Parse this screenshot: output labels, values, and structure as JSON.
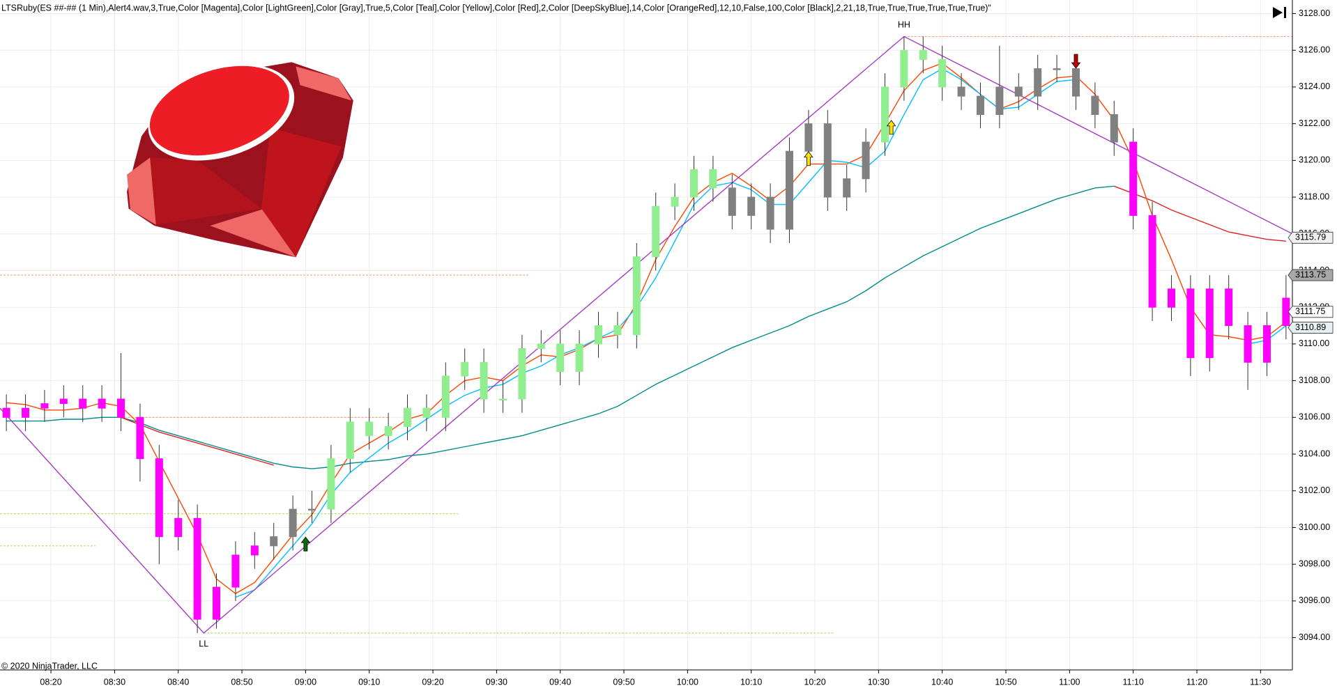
{
  "chart_data": {
    "type": "candlestick",
    "title": "LTSRuby(ES  ##-## (1 Min),Alert4.wav,3,True,Color [Magenta],Color [LightGreen],Color [Gray],True,5,Color [Teal],Color [Yellow],Color [Red],2,Color [DeepSkyBlue],14,Color [OrangeRed],12,10,False,100,Color [Black],2,21,18,True,True,True,True,True,True)\"",
    "footer": "© 2020 NinjaTrader, LLC",
    "x": [
      "08:13",
      "08:16",
      "08:19",
      "08:22",
      "08:25",
      "08:28",
      "08:31",
      "08:34",
      "08:37",
      "08:40",
      "08:43",
      "08:46",
      "08:49",
      "08:52",
      "08:55",
      "08:58",
      "09:01",
      "09:04",
      "09:07",
      "09:10",
      "09:13",
      "09:16",
      "09:19",
      "09:22",
      "09:25",
      "09:28",
      "09:31",
      "09:34",
      "09:37",
      "09:40",
      "09:43",
      "09:46",
      "09:49",
      "09:52",
      "09:55",
      "09:58",
      "10:01",
      "10:04",
      "10:07",
      "10:10",
      "10:13",
      "10:16",
      "10:19",
      "10:22",
      "10:25",
      "10:28",
      "10:31",
      "10:34",
      "10:37",
      "10:40",
      "10:43",
      "10:46",
      "10:49",
      "10:52",
      "10:55",
      "10:58",
      "11:01",
      "11:04",
      "11:07",
      "11:10",
      "11:13",
      "11:16",
      "11:19",
      "11:22",
      "11:25",
      "11:28",
      "11:31",
      "11:34"
    ],
    "open": [
      3106.5,
      3106,
      3106.5,
      3106.75,
      3107,
      3106.5,
      3107,
      3106,
      3103.75,
      3099.5,
      3100.5,
      3095,
      3096.75,
      3098.5,
      3099,
      3099.5,
      3101,
      3101,
      3103.75,
      3105.75,
      3105,
      3105.5,
      3106.5,
      3106,
      3108.25,
      3109,
      3107,
      3107,
      3109.75,
      3110,
      3108.5,
      3110,
      3111,
      3110.5,
      3114.75,
      3117.5,
      3118,
      3119.5,
      3118.5,
      3117,
      3118,
      3116.25,
      3120.5,
      3122,
      3118,
      3119,
      3121,
      3124,
      3126,
      3125.5,
      3124,
      3123.5,
      3122.5,
      3124,
      3123.5,
      3125,
      3125,
      3123.5,
      3122.5,
      3121,
      3117,
      3112,
      3113,
      3109.25,
      3113,
      3111,
      3109,
      3111
    ],
    "high": [
      3107.25,
      3107.25,
      3107.5,
      3107.75,
      3107.75,
      3107.75,
      3109.5,
      3106.75,
      3104.5,
      3101.5,
      3101.25,
      3097.5,
      3099.25,
      3099.75,
      3100.25,
      3101.75,
      3102,
      3104.5,
      3106.5,
      3106.5,
      3106.25,
      3107.25,
      3107.25,
      3109,
      3109.75,
      3109.75,
      3108,
      3110.5,
      3110.75,
      3110.75,
      3110.75,
      3111.75,
      3111.75,
      3115.5,
      3118.25,
      3118.75,
      3120.25,
      3120.25,
      3119.25,
      3118.75,
      3118.75,
      3121.25,
      3122.75,
      3122.75,
      3119.75,
      3121.75,
      3124.75,
      3126.75,
      3126.75,
      3126.25,
      3124.75,
      3124.25,
      3126.25,
      3124.75,
      3125.75,
      3125.75,
      3125.75,
      3124.25,
      3123.25,
      3121.75,
      3117.75,
      3113.75,
      3113.75,
      3113.75,
      3113.75,
      3111.75,
      3111.75,
      3113.75
    ],
    "low": [
      3105.25,
      3105.25,
      3105.75,
      3106,
      3105.75,
      3105.75,
      3105.25,
      3102.5,
      3098,
      3098.75,
      3094.25,
      3094.5,
      3096,
      3097.75,
      3098.25,
      3098.75,
      3100.25,
      3100.25,
      3103,
      3104.25,
      3104.25,
      3104.75,
      3105.25,
      3105.25,
      3107.5,
      3106.25,
      3106.25,
      3106.25,
      3109,
      3107.75,
      3107.75,
      3109.25,
      3109.75,
      3109.75,
      3114,
      3116.75,
      3117.25,
      3117.75,
      3116.25,
      3116.25,
      3115.5,
      3115.5,
      3119.75,
      3117.25,
      3117.25,
      3118.25,
      3120.25,
      3123.25,
      3124.75,
      3123.25,
      3122.75,
      3121.75,
      3121.75,
      3122.75,
      3122.75,
      3124.25,
      3122.75,
      3121.75,
      3120.25,
      3116.25,
      3111.25,
      3111.25,
      3108.25,
      3108.5,
      3110.25,
      3107.5,
      3108.25,
      3110.25
    ],
    "close": [
      3106,
      3106.5,
      3106.75,
      3107,
      3106.5,
      3107,
      3106,
      3103.75,
      3099.5,
      3100.5,
      3095,
      3096.75,
      3098.5,
      3099,
      3099.5,
      3101,
      3101,
      3103.75,
      3105.75,
      3105,
      3105.5,
      3106.5,
      3106,
      3108.25,
      3109,
      3107,
      3107,
      3109.75,
      3110,
      3108.5,
      3110,
      3111,
      3110.5,
      3114.75,
      3117.5,
      3118,
      3119.5,
      3118.5,
      3117,
      3118,
      3116.25,
      3120.5,
      3122,
      3118,
      3119,
      3121,
      3124,
      3126,
      3125.5,
      3124,
      3123.5,
      3122.5,
      3124,
      3123.5,
      3125,
      3125,
      3123.5,
      3122.5,
      3121,
      3117,
      3112,
      3113,
      3109.25,
      3113,
      3111,
      3109,
      3111,
      3112.5
    ],
    "candle_colors": [
      "#ff00ff",
      "#ff00ff",
      "#ff00ff",
      "#ff00ff",
      "#ff00ff",
      "#ff00ff",
      "#ff00ff",
      "#ff00ff",
      "#ff00ff",
      "#ff00ff",
      "#ff00ff",
      "#ff00ff",
      "#ff00ff",
      "#ff00ff",
      "#808080",
      "#808080",
      "#808080",
      "#90ee90",
      "#90ee90",
      "#90ee90",
      "#90ee90",
      "#90ee90",
      "#90ee90",
      "#90ee90",
      "#90ee90",
      "#90ee90",
      "#90ee90",
      "#90ee90",
      "#90ee90",
      "#90ee90",
      "#90ee90",
      "#90ee90",
      "#90ee90",
      "#90ee90",
      "#90ee90",
      "#90ee90",
      "#90ee90",
      "#90ee90",
      "#808080",
      "#808080",
      "#808080",
      "#808080",
      "#808080",
      "#808080",
      "#808080",
      "#808080",
      "#90ee90",
      "#90ee90",
      "#90ee90",
      "#90ee90",
      "#808080",
      "#808080",
      "#808080",
      "#808080",
      "#808080",
      "#808080",
      "#808080",
      "#808080",
      "#808080",
      "#ff00ff",
      "#ff00ff",
      "#ff00ff",
      "#ff00ff",
      "#ff00ff",
      "#ff00ff",
      "#ff00ff",
      "#ff00ff",
      "#ff00ff"
    ],
    "lines": [
      {
        "color": "#008b8b",
        "values": [
          3105.8,
          3105.8,
          3105.8,
          3105.9,
          3105.9,
          3106.0,
          3106.0,
          3105.7,
          3105.3,
          3105.0,
          3104.7,
          3104.4,
          3104.1,
          3103.8,
          3103.5,
          3103.3,
          3103.2,
          3103.3,
          3103.5,
          3103.6,
          3103.7,
          3103.9,
          3104.0,
          3104.2,
          3104.4,
          3104.6,
          3104.8,
          3105.0,
          3105.3,
          3105.6,
          3105.9,
          3106.2,
          3106.6,
          3107.2,
          3107.8,
          3108.3,
          3108.8,
          3109.3,
          3109.8,
          3110.2,
          3110.6,
          3111.0,
          3111.5,
          3111.9,
          3112.3,
          3112.9,
          3113.6,
          3114.2,
          3114.8,
          3115.3,
          3115.8,
          3116.3,
          3116.7,
          3117.1,
          3117.5,
          3117.9,
          3118.2,
          3118.5,
          3118.6,
          null,
          null,
          null,
          null,
          null,
          null,
          null,
          null,
          null
        ]
      },
      {
        "color": "#e02020",
        "values": [
          null,
          null,
          null,
          null,
          null,
          null,
          3106.0,
          3105.6,
          3105.2,
          3104.9,
          3104.6,
          3104.3,
          3104.0,
          3103.7,
          3103.4,
          null,
          null,
          null,
          null,
          null,
          null,
          null,
          null,
          null,
          null,
          null,
          null,
          null,
          null,
          null,
          null,
          null,
          null,
          null,
          null,
          null,
          null,
          null,
          null,
          null,
          null,
          null,
          null,
          null,
          null,
          null,
          null,
          null,
          null,
          null,
          null,
          null,
          null,
          null,
          null,
          null,
          null,
          null,
          3118.6,
          3118.2,
          3117.8,
          3117.3,
          3116.9,
          3116.5,
          3116.1,
          3115.9,
          3115.7,
          3115.6
        ]
      },
      {
        "color": "#ff4500",
        "values": [
          3106.8,
          3106.7,
          3106.4,
          3106.4,
          3106.5,
          3106.8,
          3106.6,
          3105.6,
          3103.6,
          3101.6,
          3099.6,
          3097.2,
          3096.4,
          3097,
          3098.3,
          3099.6,
          3100.7,
          3102.4,
          3104.0,
          3104.6,
          3105.2,
          3105.9,
          3106.2,
          3107.2,
          3108.0,
          3108.2,
          3108.0,
          3108.8,
          3109.4,
          3109.3,
          3109.7,
          3110.3,
          3110.5,
          3112.2,
          3114.6,
          3116.4,
          3118.0,
          3118.8,
          3119.3,
          3118.6,
          3117.8,
          3118.6,
          3119.8,
          3119.8,
          3119.8,
          3120.3,
          3122.0,
          3123.8,
          3124.9,
          3125.3,
          3124.5,
          3123.6,
          3122.8,
          3123.2,
          3123.9,
          3124.5,
          3124.6,
          3123.6,
          3122.2,
          3120.0,
          3117.0,
          3114.6,
          3112.0,
          3110.5,
          3110.4,
          3110.2,
          3110.4,
          3111.2
        ]
      },
      {
        "color": "#00bfff",
        "values": [
          null,
          null,
          null,
          null,
          null,
          null,
          null,
          null,
          null,
          null,
          null,
          null,
          3096.2,
          3096.6,
          3097.8,
          3099.0,
          3100.2,
          3101.8,
          3103.0,
          3103.8,
          3104.6,
          3105.2,
          3105.9,
          3106.6,
          3107.2,
          3107.6,
          3107.8,
          3108.4,
          3108.8,
          3109.4,
          3109.8,
          3110.3,
          3110.8,
          3112.0,
          3113.6,
          3115.6,
          3117.6,
          3118.6,
          3118.8,
          3118.4,
          3117.6,
          3117.6,
          3118.8,
          3120.0,
          3119.9,
          3119.6,
          3120.5,
          3122.5,
          3124.4,
          3125.0,
          3124.4,
          3123.6,
          3122.8,
          3122.9,
          3123.6,
          3124.3,
          3124.4,
          null,
          null,
          null,
          null,
          null,
          null,
          null,
          null,
          3110.0,
          3110.2,
          3111.0
        ]
      }
    ],
    "zigzag": {
      "color": "#a43cc4",
      "x": [
        "08:12",
        "08:44",
        "10:34",
        "11:35"
      ],
      "values": [
        3106.5,
        3094.25,
        3126.75,
        3116
      ]
    },
    "annotations": [
      {
        "text": "LL",
        "x": "08:44",
        "value": 3094.25
      },
      {
        "text": "HH",
        "x": "10:34",
        "value": 3126.75
      }
    ],
    "levels": [
      {
        "value": 3126.75,
        "from": "10:34",
        "to": "11:35",
        "color": "#f4a582"
      },
      {
        "value": 3113.75,
        "from": "08:12",
        "to": "09:35",
        "color": "#f4a582"
      },
      {
        "value": 3106,
        "from": "08:31",
        "to": "09:13",
        "color": "#f4a582"
      },
      {
        "value": 3100.75,
        "from": "08:12",
        "to": "09:24",
        "color": "#b5e06a"
      },
      {
        "value": 3099,
        "from": "08:12",
        "to": "08:27",
        "color": "#b5e06a"
      },
      {
        "value": 3094.25,
        "from": "08:44",
        "to": "10:23",
        "color": "#b5e06a"
      }
    ],
    "arrows": [
      {
        "x": "09:00",
        "value": 3099.1,
        "color": "#0a6e0a",
        "dir": "up"
      },
      {
        "x": "10:19",
        "value": 3120.1,
        "color": "#ffe000",
        "dir": "up"
      },
      {
        "x": "10:32",
        "value": 3121.8,
        "color": "#ffe000",
        "dir": "up"
      },
      {
        "x": "11:01",
        "value": 3125.4,
        "color": "#c00000",
        "dir": "down"
      }
    ],
    "price_markers": [
      {
        "value": 3115.79,
        "color": "#f0f0f0"
      },
      {
        "value": 3113.75,
        "color": "#a8a8a8"
      },
      {
        "value": 3111.75,
        "color": "#ffffff"
      },
      {
        "value": 3110.89,
        "color": "#e6f2f2"
      }
    ],
    "xlim": [
      "08:12",
      "11:35"
    ],
    "xticks": [
      "08:20",
      "08:30",
      "08:40",
      "08:50",
      "09:00",
      "09:10",
      "09:20",
      "09:30",
      "09:40",
      "09:50",
      "10:00",
      "10:10",
      "10:20",
      "10:30",
      "10:40",
      "10:50",
      "11:00",
      "11:10",
      "11:20",
      "11:30"
    ],
    "ylim": [
      3092.24,
      3128.74
    ],
    "yticks": [
      {
        "value": 3094,
        "label": "3094.00"
      },
      {
        "value": 3096,
        "label": "3096.00"
      },
      {
        "value": 3098,
        "label": "3098.00"
      },
      {
        "value": 3100,
        "label": "3100.00"
      },
      {
        "value": 3102,
        "label": "3102.00"
      },
      {
        "value": 3104,
        "label": "3104.00"
      },
      {
        "value": 3106,
        "label": "3106.00"
      },
      {
        "value": 3108,
        "label": "3108.00"
      },
      {
        "value": 3110,
        "label": "3110.00"
      },
      {
        "value": 3112,
        "label": "3112.00"
      },
      {
        "value": 3114,
        "label": "3114.00"
      },
      {
        "value": 3116,
        "label": "3116.00"
      },
      {
        "value": 3118,
        "label": "3118.00"
      },
      {
        "value": 3120,
        "label": "3120.00"
      },
      {
        "value": 3122,
        "label": "3122.00"
      },
      {
        "value": 3124,
        "label": "3124.00"
      },
      {
        "value": 3126,
        "label": "3126.00"
      },
      {
        "value": 3128,
        "label": "3128.00"
      }
    ],
    "grid": true
  }
}
